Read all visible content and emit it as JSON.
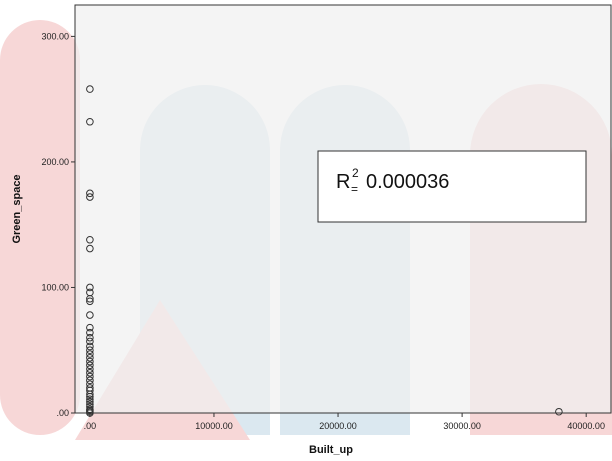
{
  "chart_data": {
    "type": "scatter",
    "xlabel": "Built_up",
    "ylabel": "Green_space",
    "xlim": [
      -1200,
      42000
    ],
    "ylim": [
      0,
      325
    ],
    "x_ticks": [
      0,
      10000,
      20000,
      30000,
      40000
    ],
    "y_ticks": [
      0,
      100,
      200,
      300
    ],
    "x_tick_labels": [
      ".00",
      "10000.00",
      "20000.00",
      "30000.00",
      "40000.00"
    ],
    "y_tick_labels": [
      ".00",
      "100.00",
      "200.00",
      "300.00"
    ],
    "grid": false,
    "marker": "hollow-circle",
    "points": [
      {
        "x": 0,
        "y": 258
      },
      {
        "x": 0,
        "y": 232
      },
      {
        "x": 0,
        "y": 175
      },
      {
        "x": 0,
        "y": 172
      },
      {
        "x": 0,
        "y": 138
      },
      {
        "x": 0,
        "y": 131
      },
      {
        "x": 0,
        "y": 100
      },
      {
        "x": 0,
        "y": 96
      },
      {
        "x": 0,
        "y": 91
      },
      {
        "x": 0,
        "y": 89
      },
      {
        "x": 0,
        "y": 78
      },
      {
        "x": 0,
        "y": 68
      },
      {
        "x": 0,
        "y": 64
      },
      {
        "x": 0,
        "y": 60
      },
      {
        "x": 0,
        "y": 57
      },
      {
        "x": 0,
        "y": 53
      },
      {
        "x": 0,
        "y": 50
      },
      {
        "x": 0,
        "y": 47
      },
      {
        "x": 0,
        "y": 44
      },
      {
        "x": 0,
        "y": 41
      },
      {
        "x": 0,
        "y": 38
      },
      {
        "x": 0,
        "y": 35
      },
      {
        "x": 0,
        "y": 32
      },
      {
        "x": 0,
        "y": 29
      },
      {
        "x": 0,
        "y": 26
      },
      {
        "x": 0,
        "y": 23
      },
      {
        "x": 0,
        "y": 20
      },
      {
        "x": 0,
        "y": 18
      },
      {
        "x": 0,
        "y": 15
      },
      {
        "x": 0,
        "y": 13
      },
      {
        "x": 0,
        "y": 11
      },
      {
        "x": 0,
        "y": 9
      },
      {
        "x": 0,
        "y": 7
      },
      {
        "x": 0,
        "y": 5
      },
      {
        "x": 0,
        "y": 3
      },
      {
        "x": 0,
        "y": 2
      },
      {
        "x": 0,
        "y": 1
      },
      {
        "x": 0,
        "y": 0
      },
      {
        "x": 37800,
        "y": 1
      }
    ],
    "annotation": {
      "base": "R",
      "superscript": "2",
      "subscript": "=",
      "value": "0.000036"
    }
  },
  "colors": {
    "plot_background": "#f0f0f0",
    "axis": "#333333",
    "marker_stroke": "#333333",
    "watermark_blue": "#dbe8f0",
    "watermark_red": "#f7d7d7"
  }
}
